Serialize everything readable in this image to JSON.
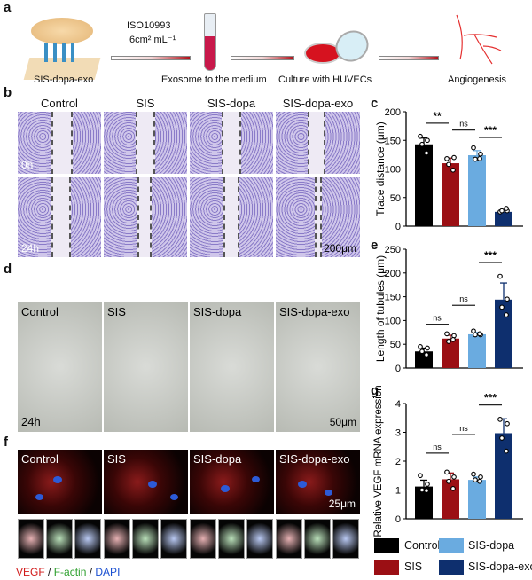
{
  "panels": {
    "a": "a",
    "b": "b",
    "c": "c",
    "d": "d",
    "e": "e",
    "f": "f",
    "g": "g"
  },
  "schematic": {
    "step1": "SIS-dopa-exo",
    "condition_line1": "ISO10993",
    "condition_line2": "6cm² mL⁻¹",
    "step2": "Exosome to the medium",
    "step3": "Culture with HUVECs",
    "step4": "Angiogenesis"
  },
  "groups": [
    "Control",
    "SIS",
    "SIS-dopa",
    "SIS-dopa-exo"
  ],
  "wound": {
    "time0": "0h",
    "time24": "24h",
    "scale": "200μm"
  },
  "tube": {
    "time": "24h",
    "scale": "50μm"
  },
  "stain": {
    "scale": "25μm",
    "vegf": "VEGF",
    "sep1": " / ",
    "factin": "F-actin",
    "sep2": " / ",
    "dapi": "DAPI",
    "colors": {
      "vegf": "#d11a1a",
      "factin": "#2ea02e",
      "dapi": "#1a4fd1"
    }
  },
  "legend": {
    "items": [
      {
        "label": "Control",
        "color": "#000000"
      },
      {
        "label": "SIS",
        "color": "#9b0f14"
      },
      {
        "label": "SIS-dopa",
        "color": "#6aabe0"
      },
      {
        "label": "SIS-dopa-exo",
        "color": "#0e2f6e"
      }
    ]
  },
  "chart_data": [
    {
      "type": "bar",
      "ylabel": "Trace distance (μm)",
      "ylim": [
        0,
        200
      ],
      "yticks": [
        "0",
        "50",
        "100",
        "150",
        "200"
      ],
      "categories": [
        "Control",
        "SIS",
        "SIS-dopa",
        "SIS-dopa-exo"
      ],
      "values": [
        143,
        110,
        124,
        25
      ],
      "errors": [
        11,
        9,
        8,
        3
      ],
      "points": [
        [
          157,
          150,
          143,
          128
        ],
        [
          118,
          120,
          108,
          98
        ],
        [
          137,
          126,
          117,
          118
        ],
        [
          25,
          27,
          27,
          31
        ]
      ],
      "annotations": [
        {
          "from": 0,
          "to": 1,
          "y": 180,
          "label": "**"
        },
        {
          "from": 1,
          "to": 2,
          "y": 168,
          "label": "ns"
        },
        {
          "from": 2,
          "to": 3,
          "y": 155,
          "label": "***"
        }
      ]
    },
    {
      "type": "bar",
      "ylabel": "Length of tubules (μm)",
      "ylim": [
        0,
        250
      ],
      "yticks": [
        "0",
        "50",
        "100",
        "150",
        "200",
        "250"
      ],
      "categories": [
        "Control",
        "SIS",
        "SIS-dopa",
        "SIS-dopa-exo"
      ],
      "values": [
        35,
        62,
        71,
        144
      ],
      "errors": [
        7,
        7,
        4,
        35
      ],
      "points": [
        [
          45,
          42,
          35,
          28
        ],
        [
          72,
          68,
          56,
          60
        ],
        [
          78,
          70,
          70,
          72
        ],
        [
          193,
          145,
          128,
          112
        ]
      ],
      "annotations": [
        {
          "from": 0,
          "to": 1,
          "y": 92,
          "label": "ns"
        },
        {
          "from": 1,
          "to": 2,
          "y": 132,
          "label": "ns"
        },
        {
          "from": 2,
          "to": 3,
          "y": 222,
          "label": "***"
        }
      ]
    },
    {
      "type": "bar",
      "ylabel": "Relative VEGF mRNA expression",
      "ylim": [
        0,
        4
      ],
      "yticks": [
        "0",
        "1",
        "2",
        "3",
        "4"
      ],
      "categories": [
        "Control",
        "SIS",
        "SIS-dopa",
        "SIS-dopa-exo"
      ],
      "values": [
        1.12,
        1.37,
        1.35,
        2.97
      ],
      "errors": [
        0.22,
        0.22,
        0.1,
        0.5
      ],
      "points": [
        [
          1.5,
          1.2,
          1.0,
          0.98
        ],
        [
          1.62,
          1.45,
          1.3,
          1.05
        ],
        [
          1.55,
          1.45,
          1.35,
          1.3
        ],
        [
          3.45,
          3.3,
          2.8,
          2.35
        ]
      ],
      "annotations": [
        {
          "from": 0,
          "to": 1,
          "y": 2.28,
          "label": "ns"
        },
        {
          "from": 1,
          "to": 2,
          "y": 2.92,
          "label": "ns"
        },
        {
          "from": 2,
          "to": 3,
          "y": 3.95,
          "label": "***"
        }
      ]
    }
  ]
}
